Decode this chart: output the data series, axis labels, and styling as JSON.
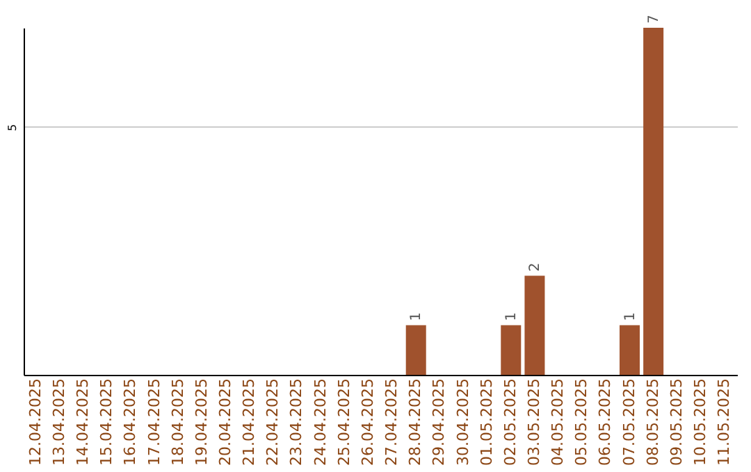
{
  "chart_data": {
    "type": "bar",
    "categories": [
      "12.04.2025",
      "13.04.2025",
      "14.04.2025",
      "15.04.2025",
      "16.04.2025",
      "17.04.2025",
      "18.04.2025",
      "19.04.2025",
      "20.04.2025",
      "21.04.2025",
      "22.04.2025",
      "23.04.2025",
      "24.04.2025",
      "25.04.2025",
      "26.04.2025",
      "27.04.2025",
      "28.04.2025",
      "29.04.2025",
      "30.04.2025",
      "01.05.2025",
      "02.05.2025",
      "03.05.2025",
      "04.05.2025",
      "05.05.2025",
      "06.05.2025",
      "07.05.2025",
      "08.05.2025",
      "09.05.2025",
      "10.05.2025",
      "11.05.2025"
    ],
    "values": [
      null,
      null,
      null,
      null,
      null,
      null,
      null,
      null,
      null,
      null,
      null,
      null,
      null,
      null,
      null,
      null,
      1,
      null,
      null,
      null,
      1,
      2,
      null,
      null,
      null,
      1,
      7,
      null,
      null,
      null
    ],
    "color": "#a0522d",
    "ylim": [
      0,
      7
    ],
    "yticks": [
      5
    ],
    "grid": "y",
    "data_labels": true
  }
}
